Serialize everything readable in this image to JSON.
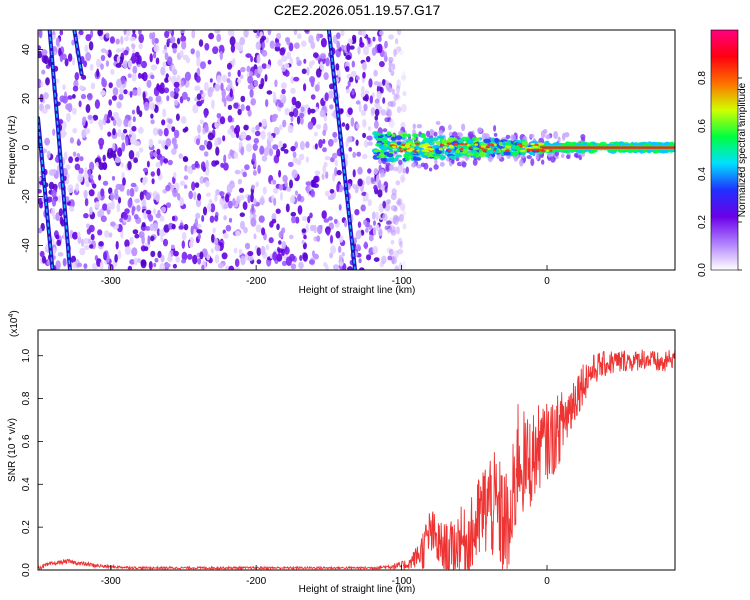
{
  "chart_data": [
    {
      "type": "heatmap",
      "title": "C2E2.2026.051.19.57.G17",
      "xlabel": "Height of straight line (km)",
      "ylabel": "Frequency (Hz)",
      "xlim": [
        -350,
        88
      ],
      "ylim": [
        -50,
        48
      ],
      "xticks": [
        -300,
        -200,
        -100,
        0
      ],
      "xtick_labels": [
        "-300",
        "-200",
        "-100",
        "0"
      ],
      "yticks": [
        -40,
        -20,
        0,
        20,
        40
      ],
      "ytick_labels": [
        "-40",
        "-20",
        "0",
        "20",
        "40"
      ],
      "colorbar": {
        "label": "Normalized spectral amplitude",
        "range": [
          0,
          1
        ],
        "ticks": [
          0,
          0.2,
          0.4,
          0.6,
          0.8
        ],
        "tick_labels": [
          "0.0",
          "0.2",
          "0.4",
          "0.6",
          "0.8"
        ],
        "colors": [
          "#ffffff",
          "#b080ff",
          "#6a00e8",
          "#2030ff",
          "#00e0ff",
          "#00ff40",
          "#d0ff00",
          "#ff7000",
          "#ff0010",
          "#ff0080"
        ]
      },
      "noise_region": {
        "x_range": [
          -350,
          -115
        ],
        "y_range": [
          -50,
          48
        ]
      },
      "signal_band": {
        "x_range": [
          -118,
          88
        ],
        "center_hz": 0,
        "width_hz_start": 12,
        "width_hz_end": 3
      },
      "tracks": [
        {
          "x_start": -342,
          "y_start": 48,
          "x_end": -328,
          "y_end": -50
        },
        {
          "x_start": -350,
          "y_start": 12,
          "x_end": -340,
          "y_end": -50
        },
        {
          "x_start": -325,
          "y_start": 48,
          "x_end": -320,
          "y_end": 30
        },
        {
          "x_start": -150,
          "y_start": 48,
          "x_end": -132,
          "y_end": -50
        }
      ]
    },
    {
      "type": "line",
      "title": "",
      "xlabel": "Height of straight line (km)",
      "ylabel": "SNR (10 * v/v)",
      "scale_label": "(x10",
      "scale_exp": "4",
      "scale_close": ")",
      "xlim": [
        -350,
        88
      ],
      "ylim": [
        0,
        1.12
      ],
      "xticks": [
        -300,
        -200,
        -100,
        0
      ],
      "xtick_labels": [
        "-300",
        "-200",
        "-100",
        "0"
      ],
      "yticks": [
        0,
        0.2,
        0.4,
        0.6,
        0.8,
        1.0
      ],
      "ytick_labels": [
        "0.0",
        "0.2",
        "0.4",
        "0.6",
        "0.8",
        "1.0"
      ],
      "series": [
        {
          "name": "SNR",
          "color": "#ee3333",
          "x": [
            -350,
            -340,
            -330,
            -320,
            -310,
            -300,
            -280,
            -250,
            -200,
            -150,
            -120,
            -110,
            -100,
            -95,
            -90,
            -85,
            -80,
            -75,
            -70,
            -65,
            -60,
            -55,
            -50,
            -45,
            -40,
            -35,
            -30,
            -25,
            -20,
            -15,
            -10,
            -5,
            0,
            5,
            10,
            15,
            20,
            25,
            30,
            35,
            40,
            45,
            50,
            55,
            60,
            65,
            70,
            75,
            80,
            88
          ],
          "values": [
            0.01,
            0.03,
            0.04,
            0.03,
            0.02,
            0.015,
            0.01,
            0.01,
            0.01,
            0.01,
            0.01,
            0.015,
            0.02,
            0.03,
            0.06,
            0.1,
            0.18,
            0.12,
            0.09,
            0.1,
            0.14,
            0.12,
            0.18,
            0.26,
            0.32,
            0.28,
            0.22,
            0.18,
            0.55,
            0.48,
            0.52,
            0.58,
            0.6,
            0.62,
            0.68,
            0.74,
            0.82,
            0.88,
            0.92,
            0.95,
            0.96,
            0.97,
            0.97,
            0.98,
            0.97,
            0.99,
            0.98,
            0.97,
            0.96,
            1.0
          ],
          "noise_amplitude": [
            0.01,
            0.01,
            0.01,
            0.01,
            0.01,
            0.006,
            0.005,
            0.005,
            0.005,
            0.005,
            0.005,
            0.01,
            0.02,
            0.03,
            0.05,
            0.1,
            0.12,
            0.12,
            0.13,
            0.13,
            0.16,
            0.16,
            0.2,
            0.22,
            0.26,
            0.26,
            0.28,
            0.3,
            0.28,
            0.25,
            0.22,
            0.2,
            0.18,
            0.18,
            0.16,
            0.15,
            0.12,
            0.1,
            0.08,
            0.07,
            0.06,
            0.06,
            0.06,
            0.05,
            0.05,
            0.05,
            0.05,
            0.05,
            0.05,
            0.05
          ]
        }
      ]
    }
  ]
}
